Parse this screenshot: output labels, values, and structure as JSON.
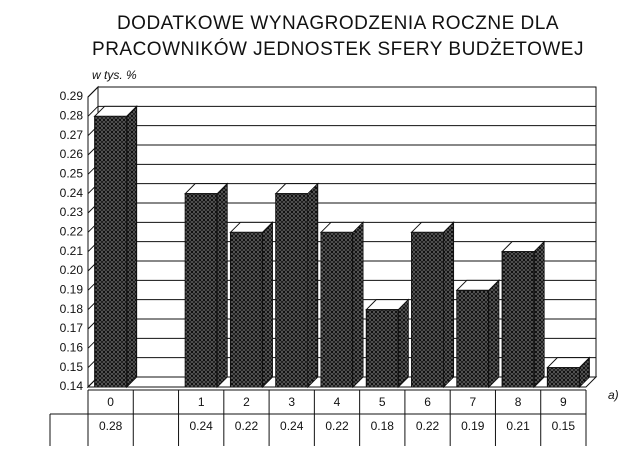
{
  "chart_data": {
    "type": "bar",
    "title": [
      "DODATKOWE WYNAGRODZENIA ROCZNE DLA",
      "PRACOWNIKÓW JEDNOSTEK SFERY BUDŻETOWEJ"
    ],
    "y_axis_label": "w tys. %",
    "annotation": "a)",
    "categories": [
      "0",
      null,
      "1",
      "2",
      "3",
      "4",
      "5",
      "6",
      "7",
      "8",
      "9"
    ],
    "values": [
      0.28,
      null,
      0.24,
      0.22,
      0.24,
      0.22,
      0.18,
      0.22,
      0.19,
      0.21,
      0.15
    ],
    "color": "#ffffff",
    "ylim": [
      0.14,
      0.29
    ],
    "yticks": [
      0.14,
      0.15,
      0.16,
      0.17,
      0.18,
      0.19,
      {
        "value": 0.2,
        "label": "0.20"
      },
      0.21,
      0.22,
      0.23,
      0.24,
      0.25,
      0.26,
      0.27,
      0.28,
      0.29
    ],
    "grid": true
  }
}
